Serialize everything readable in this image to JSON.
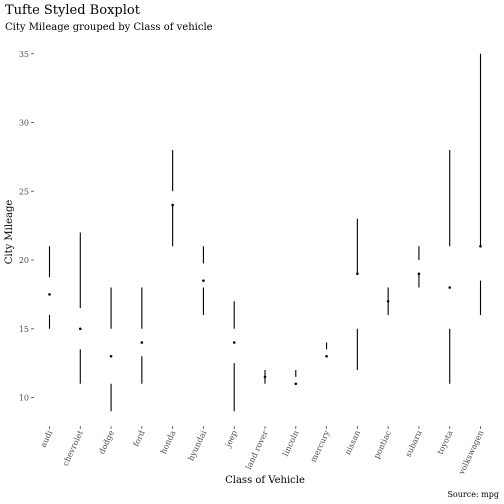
{
  "chart_data": {
    "type": "boxplot",
    "title": "Tufte Styled Boxplot",
    "subtitle": "City Mileage grouped by Class of vehicle",
    "xlabel": "Class of Vehicle",
    "ylabel": "City Mileage",
    "caption": "Source: mpg",
    "ylim": [
      8,
      36
    ],
    "yticks": [
      10,
      15,
      20,
      25,
      30,
      35
    ],
    "ytick_labels": [
      "10",
      "15",
      "20",
      "25",
      "30",
      "35"
    ],
    "grid": false,
    "categories": [
      "audi",
      "chevrolet",
      "dodge",
      "ford",
      "honda",
      "hyundai",
      "jeep",
      "land rover",
      "lincoln",
      "mercury",
      "nissan",
      "pontiac",
      "subaru",
      "toyota",
      "volkswagen"
    ],
    "boxes": [
      {
        "min": 15,
        "q1": 16,
        "median": 17.5,
        "q3": 18.75,
        "max": 21
      },
      {
        "min": 11,
        "q1": 13.5,
        "median": 15,
        "q3": 16.5,
        "max": 22
      },
      {
        "min": 9,
        "q1": 11,
        "median": 13,
        "q3": 15,
        "max": 18
      },
      {
        "min": 11,
        "q1": 13,
        "median": 14,
        "q3": 15,
        "max": 18
      },
      {
        "min": 21,
        "q1": 24,
        "median": 24,
        "q3": 25,
        "max": 28
      },
      {
        "min": 16,
        "q1": 18,
        "median": 18.5,
        "q3": 19.75,
        "max": 21
      },
      {
        "min": 9,
        "q1": 12.5,
        "median": 14,
        "q3": 15,
        "max": 17
      },
      {
        "min": 11,
        "q1": 11.5,
        "median": 11.5,
        "q3": 11.5,
        "max": 12
      },
      {
        "min": 11,
        "q1": 11,
        "median": 11,
        "q3": 11.5,
        "max": 12
      },
      {
        "min": 13,
        "q1": 13,
        "median": 13,
        "q3": 13.5,
        "max": 14
      },
      {
        "min": 12,
        "q1": 15,
        "median": 19,
        "q3": 19,
        "max": 23
      },
      {
        "min": 16,
        "q1": 17,
        "median": 17,
        "q3": 17,
        "max": 18
      },
      {
        "min": 18,
        "q1": 19,
        "median": 19,
        "q3": 20,
        "max": 21
      },
      {
        "min": 11,
        "q1": 15,
        "median": 18,
        "q3": 21,
        "max": 28
      },
      {
        "min": 16,
        "q1": 18.5,
        "median": 21,
        "q3": 21,
        "max": 35
      }
    ]
  }
}
